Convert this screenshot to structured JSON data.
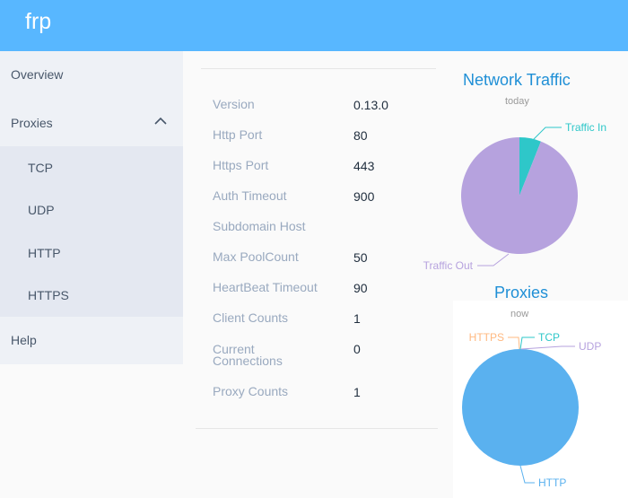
{
  "app": {
    "title": "frp"
  },
  "sidebar": {
    "overview": "Overview",
    "proxies": "Proxies",
    "proxy_types": [
      "TCP",
      "UDP",
      "HTTP",
      "HTTPS"
    ],
    "help": "Help"
  },
  "server_info": [
    {
      "label": "Version",
      "value": "0.13.0"
    },
    {
      "label": "Http Port",
      "value": "80"
    },
    {
      "label": "Https Port",
      "value": "443"
    },
    {
      "label": "Auth Timeout",
      "value": "900"
    },
    {
      "label": "Subdomain Host",
      "value": ""
    },
    {
      "label": "Max PoolCount",
      "value": "50"
    },
    {
      "label": "HeartBeat Timeout",
      "value": "90"
    },
    {
      "label": "Client Counts",
      "value": "1"
    },
    {
      "label": "Current Connections",
      "value": "0"
    },
    {
      "label": "Proxy Counts",
      "value": "1"
    }
  ],
  "chart_data": [
    {
      "type": "pie",
      "title": "Network Traffic",
      "subtitle": "today",
      "categories": [
        "Traffic In",
        "Traffic Out"
      ],
      "values": [
        6,
        94
      ],
      "colors": [
        "#2ec7c9",
        "#b6a2de"
      ]
    },
    {
      "type": "pie",
      "title": "Proxies",
      "subtitle": "now",
      "categories": [
        "TCP",
        "UDP",
        "HTTP",
        "HTTPS"
      ],
      "values": [
        0,
        0,
        1,
        0
      ],
      "colors": [
        "#2ec7c9",
        "#b6a2de",
        "#5ab1ef",
        "#ffb980"
      ]
    }
  ]
}
